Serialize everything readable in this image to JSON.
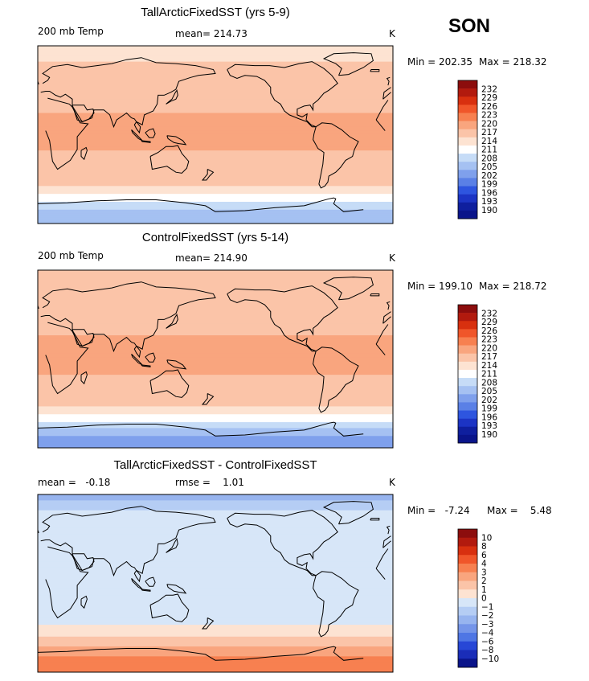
{
  "season": "SON",
  "chart_data": [
    {
      "type": "heatmap",
      "title": "TallArcticFixedSST (yrs 5-9)",
      "variable": "200 mb Temp",
      "stat_text": "mean= 214.73",
      "units": "K",
      "min_text": "Min = 202.35",
      "max_text": "Max = 218.32",
      "min": 202.35,
      "max": 218.32,
      "mean": 214.73,
      "colorbar": {
        "levels": [
          "232",
          "229",
          "226",
          "223",
          "220",
          "217",
          "214",
          "211",
          "208",
          "205",
          "202",
          "199",
          "196",
          "193",
          "190"
        ],
        "colors": [
          "#8c0d0d",
          "#b21a0e",
          "#d8300f",
          "#f0562a",
          "#f78050",
          "#f9a57e",
          "#fbc4a8",
          "#fde3d2",
          "#ffffff",
          "#c6dcf7",
          "#a5c1f2",
          "#7fa0ec",
          "#5a80e6",
          "#2e55df",
          "#1c34c4",
          "#0f1f9e",
          "#0a148a"
        ]
      },
      "zonal_pattern": [
        {
          "lat": 90,
          "v": 211.5
        },
        {
          "lat": 80,
          "v": 212.6
        },
        {
          "lat": 70,
          "v": 215.2
        },
        {
          "lat": 60,
          "v": 215.8
        },
        {
          "lat": 50,
          "v": 215.2
        },
        {
          "lat": 40,
          "v": 214.2
        },
        {
          "lat": 30,
          "v": 215.5
        },
        {
          "lat": 20,
          "v": 217.5
        },
        {
          "lat": 10,
          "v": 218.0
        },
        {
          "lat": 0,
          "v": 217.5
        },
        {
          "lat": -10,
          "v": 217.6
        },
        {
          "lat": -20,
          "v": 216.5
        },
        {
          "lat": -30,
          "v": 214.8
        },
        {
          "lat": -40,
          "v": 215.2
        },
        {
          "lat": -50,
          "v": 214.8
        },
        {
          "lat": -60,
          "v": 211.2
        },
        {
          "lat": -70,
          "v": 207.0
        },
        {
          "lat": -80,
          "v": 204.0
        },
        {
          "lat": -90,
          "v": 202.5
        }
      ]
    },
    {
      "type": "heatmap",
      "title": "ControlFixedSST (yrs 5-14)",
      "variable": "200 mb Temp",
      "stat_text": "mean= 214.90",
      "units": "K",
      "min_text": "Min = 199.10",
      "max_text": "Max = 218.72",
      "min": 199.1,
      "max": 218.72,
      "mean": 214.9,
      "colorbar": {
        "levels": [
          "232",
          "229",
          "226",
          "223",
          "220",
          "217",
          "214",
          "211",
          "208",
          "205",
          "202",
          "199",
          "196",
          "193",
          "190"
        ],
        "colors": [
          "#8c0d0d",
          "#b21a0e",
          "#d8300f",
          "#f0562a",
          "#f78050",
          "#f9a57e",
          "#fbc4a8",
          "#fde3d2",
          "#ffffff",
          "#c6dcf7",
          "#a5c1f2",
          "#7fa0ec",
          "#5a80e6",
          "#2e55df",
          "#1c34c4",
          "#0f1f9e",
          "#0a148a"
        ]
      },
      "zonal_pattern": [
        {
          "lat": 90,
          "v": 215.0
        },
        {
          "lat": 80,
          "v": 215.2
        },
        {
          "lat": 70,
          "v": 215.8
        },
        {
          "lat": 60,
          "v": 216.0
        },
        {
          "lat": 50,
          "v": 215.6
        },
        {
          "lat": 40,
          "v": 214.8
        },
        {
          "lat": 30,
          "v": 215.8
        },
        {
          "lat": 20,
          "v": 217.8
        },
        {
          "lat": 10,
          "v": 218.2
        },
        {
          "lat": 0,
          "v": 217.6
        },
        {
          "lat": -10,
          "v": 217.8
        },
        {
          "lat": -20,
          "v": 216.6
        },
        {
          "lat": -30,
          "v": 215.0
        },
        {
          "lat": -40,
          "v": 215.2
        },
        {
          "lat": -50,
          "v": 213.8
        },
        {
          "lat": -60,
          "v": 209.5
        },
        {
          "lat": -70,
          "v": 204.5
        },
        {
          "lat": -80,
          "v": 201.5
        },
        {
          "lat": -90,
          "v": 199.5
        }
      ]
    },
    {
      "type": "heatmap",
      "title": "TallArcticFixedSST - ControlFixedSST",
      "variable": "mean =   -0.18",
      "stat_text": "rmse =    1.01",
      "units": "K",
      "min_text": "Min =   -7.24",
      "max_text": "Max =    5.48",
      "min": -7.24,
      "max": 5.48,
      "mean": -0.18,
      "rmse": 1.01,
      "colorbar": {
        "levels": [
          "10",
          "8",
          "6",
          "4",
          "3",
          "2",
          "1",
          "0",
          "−1",
          "−2",
          "−3",
          "−4",
          "−6",
          "−8",
          "−10"
        ],
        "colors": [
          "#8c0d0d",
          "#b21a0e",
          "#d8300f",
          "#f0562a",
          "#f78050",
          "#f9a57e",
          "#fbc4a8",
          "#fde3d2",
          "#d7e6f8",
          "#b5cdf4",
          "#97b4ef",
          "#7595e9",
          "#4f76e4",
          "#2747d6",
          "#1a2db8",
          "#0a148a"
        ]
      },
      "zonal_pattern": [
        {
          "lat": 90,
          "v": -2.5
        },
        {
          "lat": 80,
          "v": -1.6
        },
        {
          "lat": 70,
          "v": -0.6
        },
        {
          "lat": 60,
          "v": -0.2
        },
        {
          "lat": 50,
          "v": -0.4
        },
        {
          "lat": 40,
          "v": -0.5
        },
        {
          "lat": 30,
          "v": -0.3
        },
        {
          "lat": 20,
          "v": -0.3
        },
        {
          "lat": 10,
          "v": -0.2
        },
        {
          "lat": 0,
          "v": -0.1
        },
        {
          "lat": -10,
          "v": -0.2
        },
        {
          "lat": -20,
          "v": -0.1
        },
        {
          "lat": -30,
          "v": -0.2
        },
        {
          "lat": -40,
          "v": -0.1
        },
        {
          "lat": -50,
          "v": 0.6
        },
        {
          "lat": -60,
          "v": 1.6
        },
        {
          "lat": -70,
          "v": 2.6
        },
        {
          "lat": -80,
          "v": 3.4
        },
        {
          "lat": -90,
          "v": 3.8
        }
      ]
    }
  ]
}
